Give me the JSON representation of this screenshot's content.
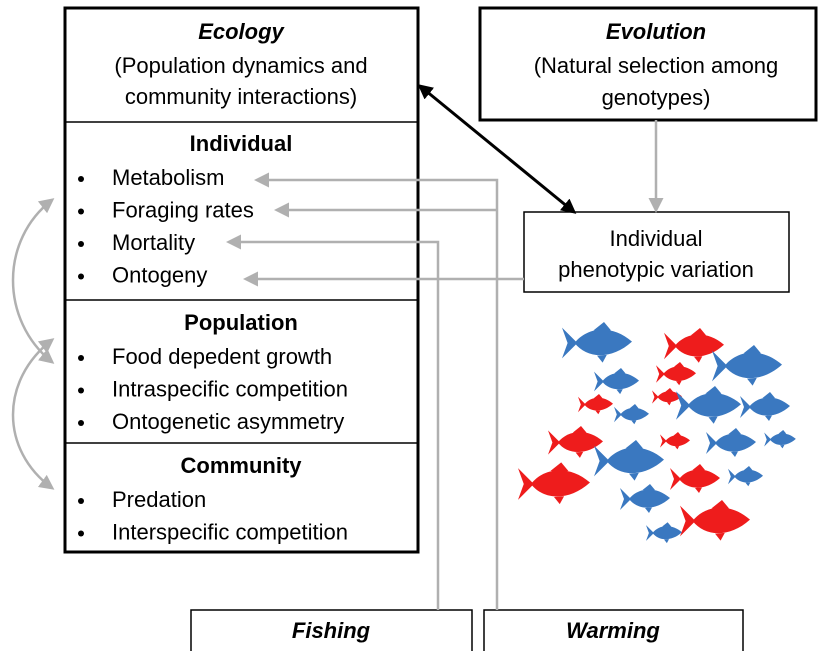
{
  "ecology": {
    "title": "Ecology",
    "lines": [
      "(Population dynamics and",
      "community interactions)"
    ]
  },
  "sections": [
    {
      "title": "Individual",
      "items": [
        "Metabolism",
        "Foraging rates",
        "Mortality",
        "Ontogeny"
      ]
    },
    {
      "title": "Population",
      "items": [
        "Food depedent growth",
        "Intraspecific competition",
        "Ontogenetic asymmetry"
      ]
    },
    {
      "title": "Community",
      "items": [
        "Predation",
        "Interspecific competition"
      ]
    }
  ],
  "evolution": {
    "title": "Evolution",
    "lines": [
      "(Natural selection among",
      "genotypes)"
    ]
  },
  "phenotype": {
    "lines": [
      "Individual",
      "phenotypic variation"
    ]
  },
  "drivers": [
    "Fishing",
    "Warming"
  ]
}
